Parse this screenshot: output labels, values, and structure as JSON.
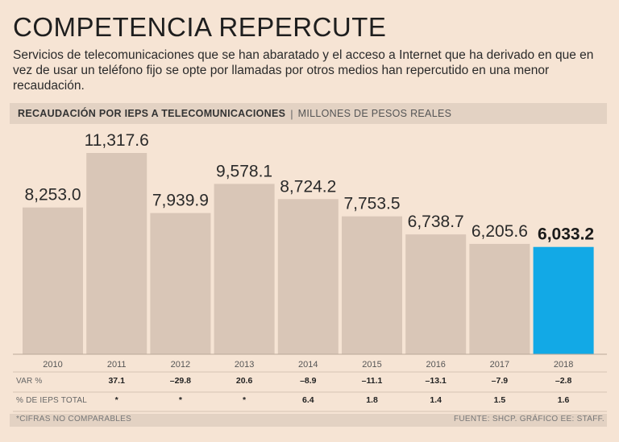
{
  "header": {
    "title": "COMPETENCIA REPERCUTE",
    "intro": "Servicios de telecomunicaciones que se han abaratado y el acceso a Internet que ha derivado en que en vez de usar un teléfono fijo se opte por llamadas por otros medios han repercutido en una menor recaudación."
  },
  "chart_header": {
    "title": "RECAUDACIÓN POR IEPS A TELECOMUNICACIONES",
    "separator": "|",
    "units": "MILLONES DE PESOS REALES"
  },
  "chart_data": {
    "type": "bar",
    "title": "RECAUDACIÓN POR IEPS A TELECOMUNICACIONES",
    "ylabel": "MILLONES DE PESOS REALES",
    "xlabel": "",
    "ylim": [
      0,
      11317.6
    ],
    "grid": false,
    "categories": [
      "2010",
      "2011",
      "2012",
      "2013",
      "2014",
      "2015",
      "2016",
      "2017",
      "2018"
    ],
    "values": [
      8253.0,
      11317.6,
      7939.9,
      9578.1,
      8724.2,
      7753.5,
      6738.7,
      6205.6,
      6033.2
    ],
    "value_labels": [
      "8,253.0",
      "11,317.6",
      "7,939.9",
      "9,578.1",
      "8,724.2",
      "7,753.5",
      "6,738.7",
      "6,205.6",
      "6,033.2"
    ],
    "highlight_index": 8,
    "colors": {
      "bar": "#d9c6b7",
      "highlight": "#12a9e6",
      "background": "#f6e4d4"
    },
    "table_rows": [
      {
        "label": "VAR %",
        "values": [
          "",
          "37.1",
          "–29.8",
          "20.6",
          "–8.9",
          "–11.1",
          "–13.1",
          "–7.9",
          "–2.8"
        ]
      },
      {
        "label": "% DE IEPS TOTAL",
        "values": [
          "",
          "*",
          "*",
          "*",
          "6.4",
          "1.8",
          "1.4",
          "1.5",
          "1.6"
        ]
      }
    ]
  },
  "footer": {
    "note": "*CIFRAS NO COMPARABLES",
    "source": "FUENTE: SHCP. GRÁFICO EE: STAFF."
  }
}
